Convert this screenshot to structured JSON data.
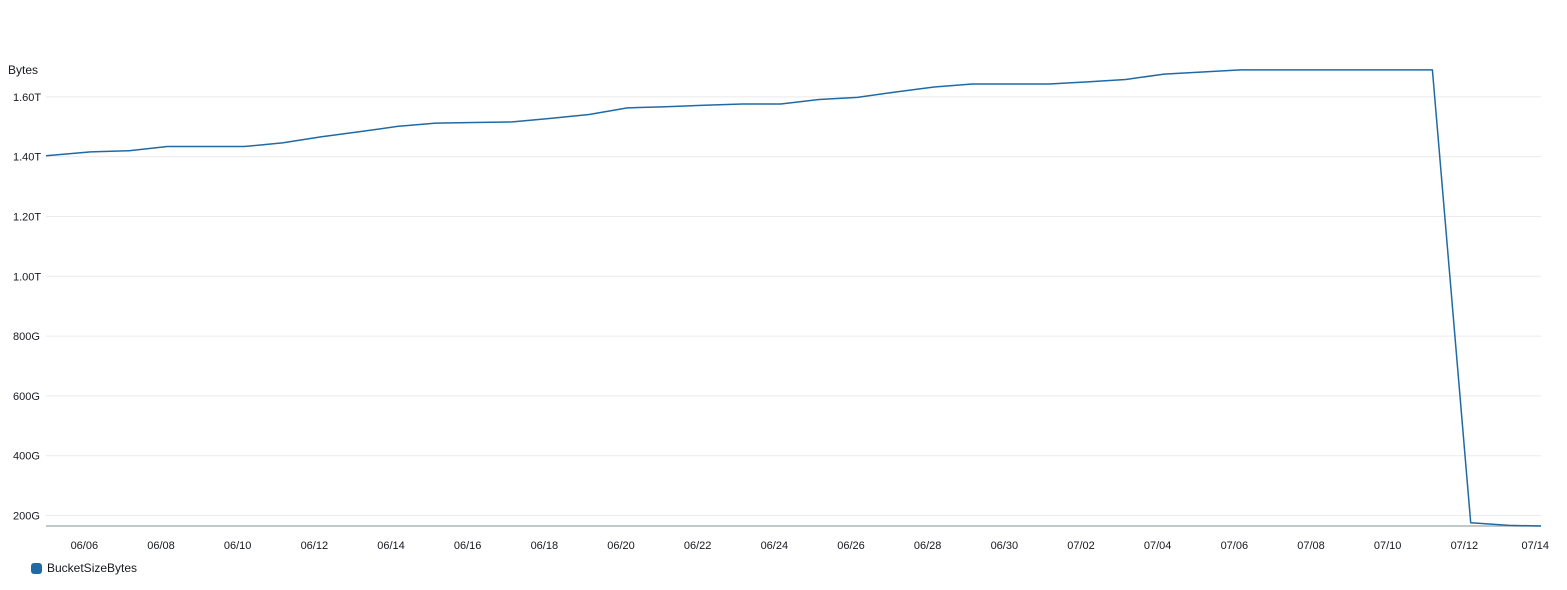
{
  "chart_data": {
    "type": "line",
    "ylabel": "Bytes",
    "y_unit": "bytes",
    "ylim": [
      165,
      1790
    ],
    "y_ticks": [
      {
        "value": 200,
        "label": "200G"
      },
      {
        "value": 400,
        "label": "400G"
      },
      {
        "value": 600,
        "label": "600G"
      },
      {
        "value": 800,
        "label": "800G"
      },
      {
        "value": 1000,
        "label": "1.00T"
      },
      {
        "value": 1200,
        "label": "1.20T"
      },
      {
        "value": 1400,
        "label": "1.40T"
      },
      {
        "value": 1600,
        "label": "1.60T"
      }
    ],
    "x_ticks": [
      {
        "date": "2024-06-06",
        "label": "06/06"
      },
      {
        "date": "2024-06-08",
        "label": "06/08"
      },
      {
        "date": "2024-06-10",
        "label": "06/10"
      },
      {
        "date": "2024-06-12",
        "label": "06/12"
      },
      {
        "date": "2024-06-14",
        "label": "06/14"
      },
      {
        "date": "2024-06-16",
        "label": "06/16"
      },
      {
        "date": "2024-06-18",
        "label": "06/18"
      },
      {
        "date": "2024-06-20",
        "label": "06/20"
      },
      {
        "date": "2024-06-22",
        "label": "06/22"
      },
      {
        "date": "2024-06-24",
        "label": "06/24"
      },
      {
        "date": "2024-06-26",
        "label": "06/26"
      },
      {
        "date": "2024-06-28",
        "label": "06/28"
      },
      {
        "date": "2024-06-30",
        "label": "06/30"
      },
      {
        "date": "2024-07-02",
        "label": "07/02"
      },
      {
        "date": "2024-07-04",
        "label": "07/04"
      },
      {
        "date": "2024-07-06",
        "label": "07/06"
      },
      {
        "date": "2024-07-08",
        "label": "07/08"
      },
      {
        "date": "2024-07-10",
        "label": "07/10"
      },
      {
        "date": "2024-07-12",
        "label": "07/12"
      },
      {
        "date": "2024-07-14",
        "label": "07/14"
      }
    ],
    "xlim": [
      "2024-06-05T00:00",
      "2024-07-14T00:00"
    ],
    "grid": true,
    "legend_position": "bottom-left",
    "series": [
      {
        "name": "BucketSizeBytes",
        "color": "#1f6aa5",
        "points": [
          {
            "x": "2024-06-05T00:00",
            "y": 1403
          },
          {
            "x": "2024-06-06T04:00",
            "y": 1416
          },
          {
            "x": "2024-06-07T04:00",
            "y": 1420
          },
          {
            "x": "2024-06-08T04:00",
            "y": 1434
          },
          {
            "x": "2024-06-09T04:00",
            "y": 1434
          },
          {
            "x": "2024-06-10T04:00",
            "y": 1434
          },
          {
            "x": "2024-06-11T04:00",
            "y": 1446
          },
          {
            "x": "2024-06-12T04:00",
            "y": 1466
          },
          {
            "x": "2024-06-13T04:00",
            "y": 1483
          },
          {
            "x": "2024-06-14T04:00",
            "y": 1501
          },
          {
            "x": "2024-06-15T04:00",
            "y": 1512
          },
          {
            "x": "2024-06-16T04:00",
            "y": 1514
          },
          {
            "x": "2024-06-17T04:00",
            "y": 1516
          },
          {
            "x": "2024-06-18T04:00",
            "y": 1528
          },
          {
            "x": "2024-06-19T04:00",
            "y": 1541
          },
          {
            "x": "2024-06-20T04:00",
            "y": 1563
          },
          {
            "x": "2024-06-21T04:00",
            "y": 1567
          },
          {
            "x": "2024-06-22T04:00",
            "y": 1572
          },
          {
            "x": "2024-06-23T04:00",
            "y": 1576
          },
          {
            "x": "2024-06-24T04:00",
            "y": 1576
          },
          {
            "x": "2024-06-25T04:00",
            "y": 1591
          },
          {
            "x": "2024-06-26T04:00",
            "y": 1598
          },
          {
            "x": "2024-06-27T04:00",
            "y": 1616
          },
          {
            "x": "2024-06-28T04:00",
            "y": 1633
          },
          {
            "x": "2024-06-29T04:00",
            "y": 1643
          },
          {
            "x": "2024-06-30T04:00",
            "y": 1643
          },
          {
            "x": "2024-07-01T04:00",
            "y": 1643
          },
          {
            "x": "2024-07-02T04:00",
            "y": 1650
          },
          {
            "x": "2024-07-03T04:00",
            "y": 1658
          },
          {
            "x": "2024-07-04T04:00",
            "y": 1676
          },
          {
            "x": "2024-07-05T04:00",
            "y": 1683
          },
          {
            "x": "2024-07-06T04:00",
            "y": 1690
          },
          {
            "x": "2024-07-07T04:00",
            "y": 1690
          },
          {
            "x": "2024-07-08T04:00",
            "y": 1690
          },
          {
            "x": "2024-07-09T04:00",
            "y": 1690
          },
          {
            "x": "2024-07-10T04:00",
            "y": 1690
          },
          {
            "x": "2024-07-11T04:00",
            "y": 1690
          },
          {
            "x": "2024-07-12T04:00",
            "y": 176
          },
          {
            "x": "2024-07-13T04:00",
            "y": 167
          },
          {
            "x": "2024-07-14T00:00",
            "y": 165
          }
        ]
      }
    ]
  }
}
